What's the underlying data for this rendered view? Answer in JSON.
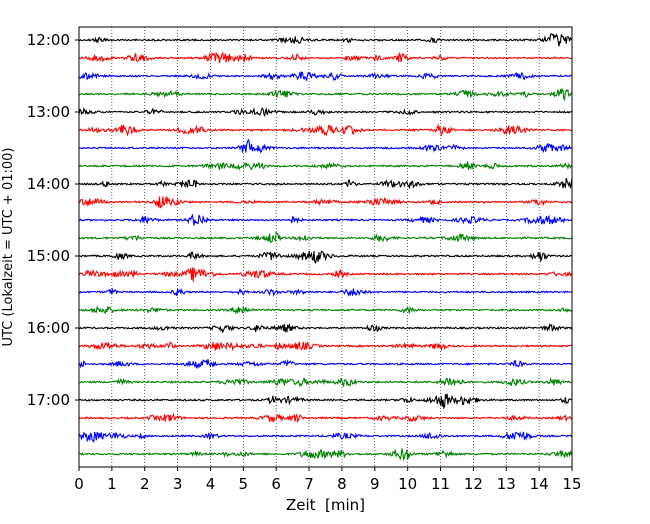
{
  "chart_data": {
    "type": "line",
    "title": "",
    "xlabel": "Zeit  [min]",
    "ylabel": "UTC (Lokalzeit = UTC + 01:00)",
    "xlim": [
      0,
      15
    ],
    "x_ticks": [
      0,
      1,
      2,
      3,
      4,
      5,
      6,
      7,
      8,
      9,
      10,
      11,
      12,
      13,
      14,
      15
    ],
    "x_tick_labels": [
      "0",
      "1",
      "2",
      "3",
      "4",
      "5",
      "6",
      "7",
      "8",
      "9",
      "10",
      "11",
      "12",
      "13",
      "14",
      "15"
    ],
    "y_tick_labels": [
      "12:00",
      "13:00",
      "14:00",
      "15:00",
      "16:00",
      "17:00"
    ],
    "row_minutes": 15,
    "start_hour": 12,
    "grid": "vertical dotted at each minute",
    "legend": "none",
    "series_colors": [
      "#000000",
      "#ff0000",
      "#0000ff",
      "#008000"
    ],
    "traces": [
      {
        "start": "12:00",
        "color": "#000000"
      },
      {
        "start": "12:15",
        "color": "#ff0000"
      },
      {
        "start": "12:30",
        "color": "#0000ff"
      },
      {
        "start": "12:45",
        "color": "#008000"
      },
      {
        "start": "13:00",
        "color": "#000000"
      },
      {
        "start": "13:15",
        "color": "#ff0000"
      },
      {
        "start": "13:30",
        "color": "#0000ff"
      },
      {
        "start": "13:45",
        "color": "#008000"
      },
      {
        "start": "14:00",
        "color": "#000000"
      },
      {
        "start": "14:15",
        "color": "#ff0000"
      },
      {
        "start": "14:30",
        "color": "#0000ff"
      },
      {
        "start": "14:45",
        "color": "#008000"
      },
      {
        "start": "15:00",
        "color": "#000000"
      },
      {
        "start": "15:15",
        "color": "#ff0000"
      },
      {
        "start": "15:30",
        "color": "#0000ff"
      },
      {
        "start": "15:45",
        "color": "#008000"
      },
      {
        "start": "16:00",
        "color": "#000000"
      },
      {
        "start": "16:15",
        "color": "#ff0000"
      },
      {
        "start": "16:30",
        "color": "#0000ff"
      },
      {
        "start": "16:45",
        "color": "#008000"
      },
      {
        "start": "17:00",
        "color": "#000000"
      },
      {
        "start": "17:15",
        "color": "#ff0000"
      },
      {
        "start": "17:30",
        "color": "#0000ff"
      },
      {
        "start": "17:45",
        "color": "#008000"
      }
    ]
  }
}
